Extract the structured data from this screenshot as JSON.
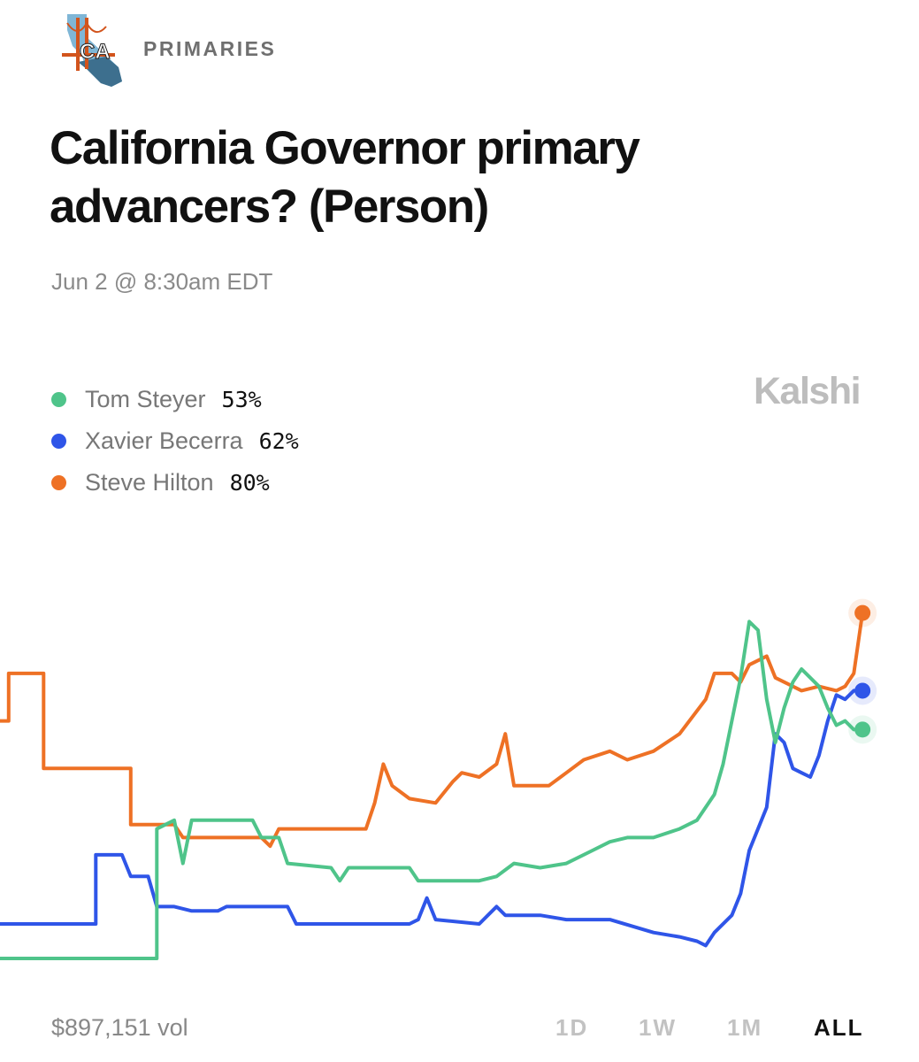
{
  "header": {
    "logo_text": "CA",
    "category": "PRIMARIES"
  },
  "title": "California Governor primary advancers? (Person)",
  "subtitle": "Jun 2 @ 8:30am EDT",
  "brand": "Kalshi",
  "legend": [
    {
      "name": "Tom Steyer",
      "value": "53%",
      "color": "#4fc48a"
    },
    {
      "name": "Xavier Becerra",
      "value": "62%",
      "color": "#2f55e8"
    },
    {
      "name": "Steve Hilton",
      "value": "80%",
      "color": "#ee7125"
    }
  ],
  "footer": {
    "volume": "$897,151 vol",
    "ranges": [
      "1D",
      "1W",
      "1M",
      "ALL"
    ],
    "active_range": "ALL"
  },
  "chart_data": {
    "type": "line",
    "title": "California Governor primary advancers? (Person)",
    "ylim": [
      0,
      100
    ],
    "xlim": [
      0,
      100
    ],
    "grid": false,
    "legend_position": "top-left",
    "series": [
      {
        "name": "Steve Hilton",
        "color": "#ee7125",
        "last": 80,
        "points": [
          [
            0,
            55
          ],
          [
            1,
            55
          ],
          [
            1,
            66
          ],
          [
            5,
            66
          ],
          [
            5,
            44
          ],
          [
            15,
            44
          ],
          [
            15,
            31
          ],
          [
            20,
            31
          ],
          [
            21,
            28
          ],
          [
            30,
            28
          ],
          [
            31,
            26
          ],
          [
            32,
            30
          ],
          [
            42,
            30
          ],
          [
            43,
            36
          ],
          [
            44,
            45
          ],
          [
            45,
            40
          ],
          [
            47,
            37
          ],
          [
            50,
            36
          ],
          [
            52,
            41
          ],
          [
            53,
            43
          ],
          [
            55,
            42
          ],
          [
            57,
            45
          ],
          [
            58,
            52
          ],
          [
            59,
            40
          ],
          [
            63,
            40
          ],
          [
            65,
            43
          ],
          [
            67,
            46
          ],
          [
            70,
            48
          ],
          [
            72,
            46
          ],
          [
            75,
            48
          ],
          [
            78,
            52
          ],
          [
            81,
            60
          ],
          [
            82,
            66
          ],
          [
            84,
            66
          ],
          [
            85,
            64
          ],
          [
            86,
            68
          ],
          [
            88,
            70
          ],
          [
            89,
            65
          ],
          [
            92,
            62
          ],
          [
            94,
            63
          ],
          [
            96,
            62
          ],
          [
            97,
            63
          ],
          [
            98,
            66
          ],
          [
            99,
            80
          ]
        ]
      },
      {
        "name": "Xavier Becerra",
        "color": "#2f55e8",
        "last": 62,
        "points": [
          [
            0,
            8
          ],
          [
            11,
            8
          ],
          [
            11,
            24
          ],
          [
            14,
            24
          ],
          [
            15,
            19
          ],
          [
            17,
            19
          ],
          [
            18,
            12
          ],
          [
            20,
            12
          ],
          [
            22,
            11
          ],
          [
            25,
            11
          ],
          [
            26,
            12
          ],
          [
            33,
            12
          ],
          [
            34,
            8
          ],
          [
            47,
            8
          ],
          [
            48,
            9
          ],
          [
            49,
            14
          ],
          [
            50,
            9
          ],
          [
            55,
            8
          ],
          [
            56,
            10
          ],
          [
            57,
            12
          ],
          [
            58,
            10
          ],
          [
            62,
            10
          ],
          [
            65,
            9
          ],
          [
            70,
            9
          ],
          [
            75,
            6
          ],
          [
            78,
            5
          ],
          [
            80,
            4
          ],
          [
            81,
            3
          ],
          [
            82,
            6
          ],
          [
            84,
            10
          ],
          [
            85,
            15
          ],
          [
            86,
            25
          ],
          [
            88,
            35
          ],
          [
            89,
            52
          ],
          [
            90,
            50
          ],
          [
            91,
            44
          ],
          [
            92,
            43
          ],
          [
            93,
            42
          ],
          [
            94,
            47
          ],
          [
            95,
            55
          ],
          [
            96,
            61
          ],
          [
            97,
            60
          ],
          [
            98,
            62
          ],
          [
            99,
            62
          ]
        ]
      },
      {
        "name": "Tom Steyer",
        "color": "#4fc48a",
        "last": 53,
        "points": [
          [
            0,
            0
          ],
          [
            18,
            0
          ],
          [
            18,
            30
          ],
          [
            20,
            32
          ],
          [
            21,
            22
          ],
          [
            22,
            32
          ],
          [
            29,
            32
          ],
          [
            30,
            28
          ],
          [
            32,
            28
          ],
          [
            33,
            22
          ],
          [
            38,
            21
          ],
          [
            39,
            18
          ],
          [
            40,
            21
          ],
          [
            47,
            21
          ],
          [
            48,
            18
          ],
          [
            55,
            18
          ],
          [
            57,
            19
          ],
          [
            59,
            22
          ],
          [
            62,
            21
          ],
          [
            65,
            22
          ],
          [
            68,
            25
          ],
          [
            70,
            27
          ],
          [
            72,
            28
          ],
          [
            75,
            28
          ],
          [
            78,
            30
          ],
          [
            80,
            32
          ],
          [
            82,
            38
          ],
          [
            83,
            45
          ],
          [
            84,
            55
          ],
          [
            85,
            65
          ],
          [
            86,
            78
          ],
          [
            87,
            76
          ],
          [
            88,
            60
          ],
          [
            89,
            50
          ],
          [
            90,
            58
          ],
          [
            91,
            64
          ],
          [
            92,
            67
          ],
          [
            93,
            65
          ],
          [
            94,
            63
          ],
          [
            95,
            58
          ],
          [
            96,
            54
          ],
          [
            97,
            55
          ],
          [
            98,
            53
          ],
          [
            99,
            53
          ]
        ]
      }
    ]
  }
}
